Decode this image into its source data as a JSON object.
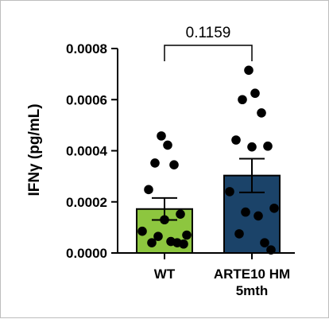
{
  "chart_data": {
    "type": "bar",
    "ylabel": "IFNγ (pg/mL)",
    "ylim": [
      0,
      0.0008
    ],
    "yticks": [
      "0.0000",
      "0.0002",
      "0.0004",
      "0.0006",
      "0.0008"
    ],
    "ytick_values": [
      0,
      0.0002,
      0.0004,
      0.0006,
      0.0008
    ],
    "categories": [
      "WT",
      "ARTE10 HM\n5mth"
    ],
    "category_lines": [
      [
        "WT"
      ],
      [
        "ARTE10 HM",
        "5mth"
      ]
    ],
    "colors": [
      "#8dc63f",
      "#1b4369"
    ],
    "means": [
      0.000172,
      0.000303
    ],
    "sem": [
      4.3e-05,
      6.6e-05
    ],
    "points": [
      [
        0.000458,
        0.000422,
        0.000352,
        0.000345,
        0.000248,
        0.000152,
        0.00013,
        8.5e-05,
        7e-05,
        6.5e-05,
        4.5e-05,
        4e-05,
        4e-05,
        3.5e-05
      ],
      [
        0.000715,
        0.000625,
        0.0006,
        0.000548,
        0.000442,
        0.000418,
        0.000415,
        0.00024,
        0.000175,
        0.00016,
        0.000145,
        7.5e-05,
        4e-05,
        1.2e-05
      ]
    ],
    "comparison": {
      "label": "0.1159",
      "between": [
        0,
        1
      ]
    },
    "grid": false,
    "legend": "none"
  }
}
